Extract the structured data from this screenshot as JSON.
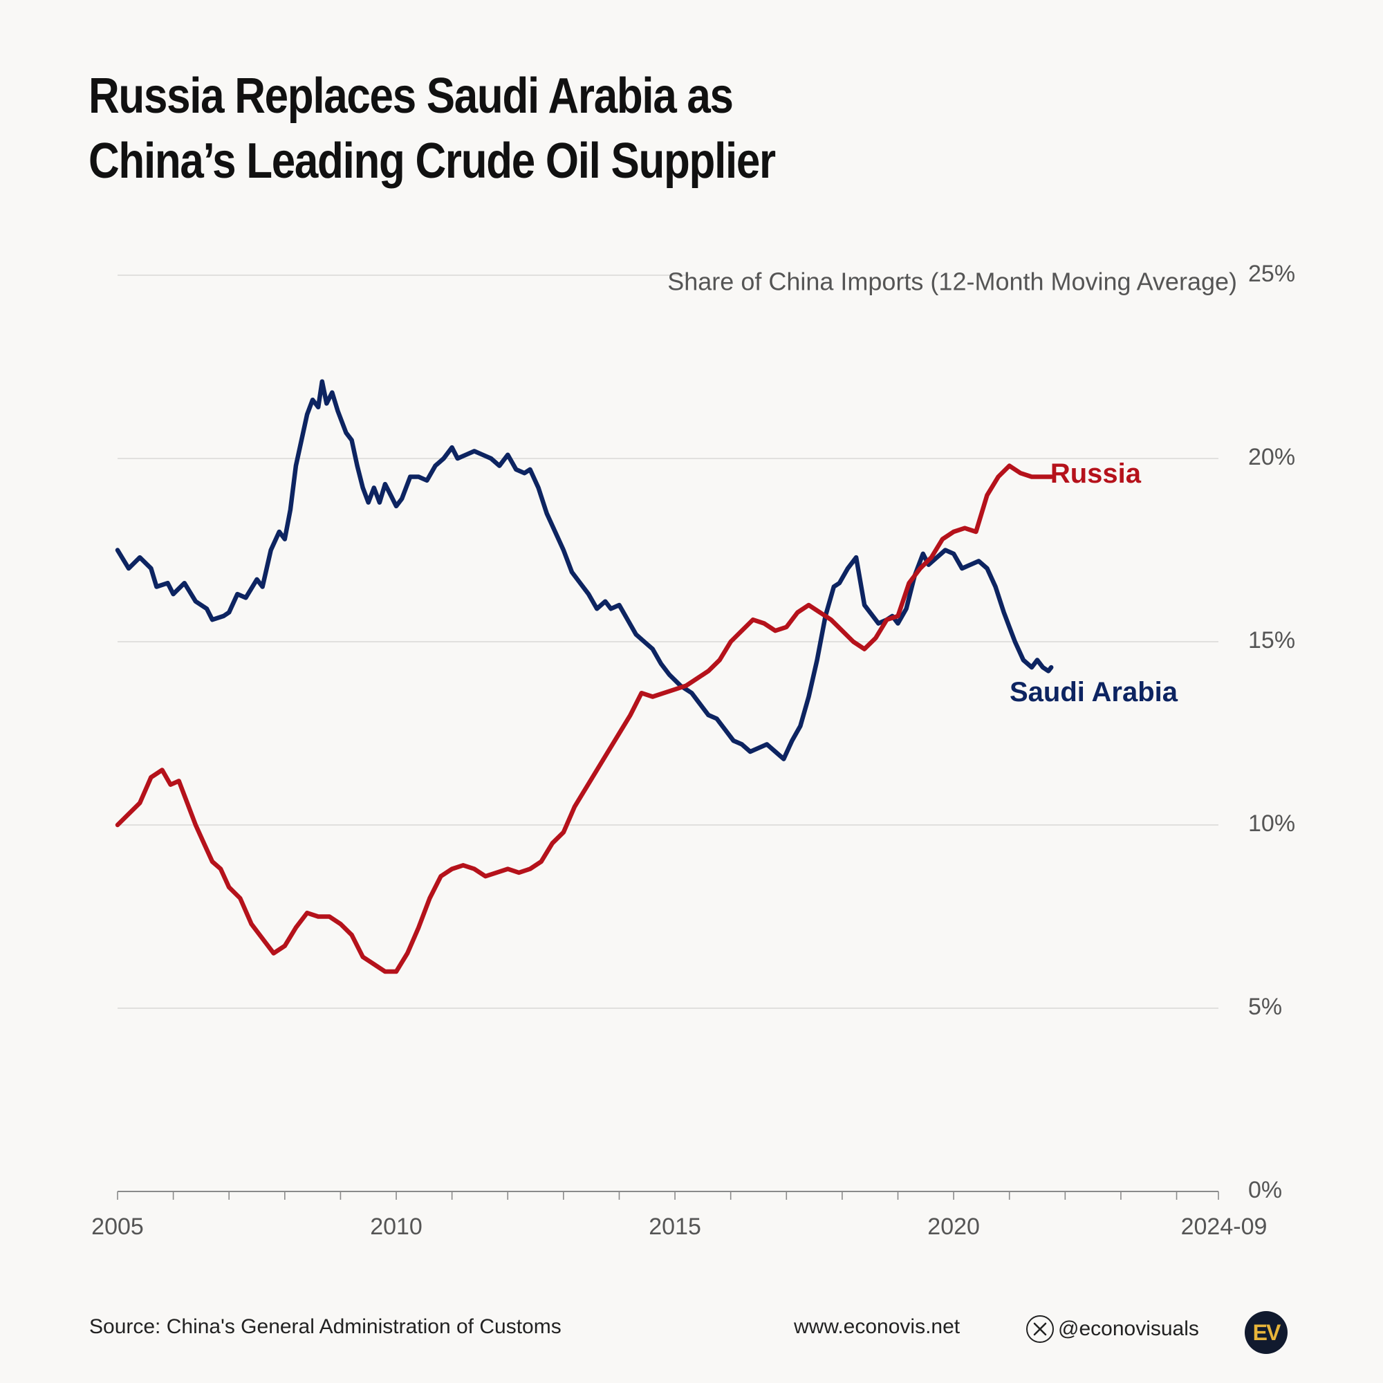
{
  "header": {
    "title_line1": "Russia Replaces Saudi Arabia as",
    "title_line2": "China’s Leading Crude Oil Supplier"
  },
  "chart_data": {
    "type": "line",
    "axis_title": "Share of China Imports (12-Month Moving Average)",
    "ylim": [
      0,
      25
    ],
    "yticks": [
      0,
      5,
      10,
      15,
      20,
      25
    ],
    "ytick_labels": [
      "0%",
      "5%",
      "10%",
      "15%",
      "20%",
      "25%"
    ],
    "xlim": [
      2005.0,
      2024.75
    ],
    "xticks": [
      2005,
      2010,
      2015,
      2020,
      2024.75
    ],
    "xtick_labels": [
      "2005",
      "2010",
      "2015",
      "2020",
      "2024-09"
    ],
    "grid": true,
    "series": [
      {
        "name": "Saudi Arabia",
        "color": "#0d2461",
        "points": [
          [
            2005.0,
            17.5
          ],
          [
            2005.2,
            17.0
          ],
          [
            2005.4,
            17.3
          ],
          [
            2005.6,
            17.0
          ],
          [
            2005.7,
            16.5
          ],
          [
            2005.9,
            16.6
          ],
          [
            2006.0,
            16.3
          ],
          [
            2006.2,
            16.6
          ],
          [
            2006.4,
            16.1
          ],
          [
            2006.6,
            15.9
          ],
          [
            2006.7,
            15.6
          ],
          [
            2006.9,
            15.7
          ],
          [
            2007.0,
            15.8
          ],
          [
            2007.15,
            16.3
          ],
          [
            2007.3,
            16.2
          ],
          [
            2007.5,
            16.7
          ],
          [
            2007.6,
            16.5
          ],
          [
            2007.75,
            17.5
          ],
          [
            2007.9,
            18.0
          ],
          [
            2008.0,
            17.8
          ],
          [
            2008.1,
            18.6
          ],
          [
            2008.2,
            19.8
          ],
          [
            2008.3,
            20.5
          ],
          [
            2008.4,
            21.2
          ],
          [
            2008.5,
            21.6
          ],
          [
            2008.6,
            21.4
          ],
          [
            2008.67,
            22.1
          ],
          [
            2008.75,
            21.5
          ],
          [
            2008.85,
            21.8
          ],
          [
            2008.95,
            21.3
          ],
          [
            2009.1,
            20.7
          ],
          [
            2009.2,
            20.5
          ],
          [
            2009.3,
            19.8
          ],
          [
            2009.4,
            19.2
          ],
          [
            2009.5,
            18.8
          ],
          [
            2009.6,
            19.2
          ],
          [
            2009.7,
            18.8
          ],
          [
            2009.8,
            19.3
          ],
          [
            2009.9,
            19.0
          ],
          [
            2010.0,
            18.7
          ],
          [
            2010.1,
            18.9
          ],
          [
            2010.25,
            19.5
          ],
          [
            2010.4,
            19.5
          ],
          [
            2010.55,
            19.4
          ],
          [
            2010.7,
            19.8
          ],
          [
            2010.85,
            20.0
          ],
          [
            2011.0,
            20.3
          ],
          [
            2011.1,
            20.0
          ],
          [
            2011.25,
            20.1
          ],
          [
            2011.4,
            20.2
          ],
          [
            2011.55,
            20.1
          ],
          [
            2011.7,
            20.0
          ],
          [
            2011.85,
            19.8
          ],
          [
            2012.0,
            20.1
          ],
          [
            2012.15,
            19.7
          ],
          [
            2012.3,
            19.6
          ],
          [
            2012.4,
            19.7
          ],
          [
            2012.55,
            19.2
          ],
          [
            2012.7,
            18.5
          ],
          [
            2012.85,
            18.0
          ],
          [
            2013.0,
            17.5
          ],
          [
            2013.15,
            16.9
          ],
          [
            2013.3,
            16.6
          ],
          [
            2013.45,
            16.3
          ],
          [
            2013.6,
            15.9
          ],
          [
            2013.75,
            16.1
          ],
          [
            2013.85,
            15.9
          ],
          [
            2014.0,
            16.0
          ],
          [
            2014.15,
            15.6
          ],
          [
            2014.3,
            15.2
          ],
          [
            2014.45,
            15.0
          ],
          [
            2014.6,
            14.8
          ],
          [
            2014.75,
            14.4
          ],
          [
            2014.9,
            14.1
          ],
          [
            2015.1,
            13.8
          ],
          [
            2015.3,
            13.6
          ],
          [
            2015.45,
            13.3
          ],
          [
            2015.6,
            13.0
          ],
          [
            2015.75,
            12.9
          ],
          [
            2015.9,
            12.6
          ],
          [
            2016.05,
            12.3
          ],
          [
            2016.2,
            12.2
          ],
          [
            2016.35,
            12.0
          ],
          [
            2016.5,
            12.1
          ],
          [
            2016.65,
            12.2
          ],
          [
            2016.8,
            12.0
          ],
          [
            2016.95,
            11.8
          ],
          [
            2017.1,
            12.3
          ],
          [
            2017.25,
            12.7
          ],
          [
            2017.4,
            13.5
          ],
          [
            2017.55,
            14.5
          ],
          [
            2017.7,
            15.7
          ],
          [
            2017.85,
            16.5
          ],
          [
            2017.95,
            16.6
          ],
          [
            2018.1,
            17.0
          ],
          [
            2018.25,
            17.3
          ],
          [
            2018.4,
            16.0
          ],
          [
            2018.5,
            15.8
          ],
          [
            2018.65,
            15.5
          ],
          [
            2018.8,
            15.6
          ],
          [
            2018.9,
            15.7
          ],
          [
            2019.0,
            15.5
          ],
          [
            2019.15,
            15.9
          ],
          [
            2019.3,
            16.8
          ],
          [
            2019.45,
            17.4
          ],
          [
            2019.55,
            17.1
          ],
          [
            2019.7,
            17.3
          ],
          [
            2019.85,
            17.5
          ],
          [
            2020.0,
            17.4
          ],
          [
            2020.15,
            17.0
          ],
          [
            2020.3,
            17.1
          ],
          [
            2020.45,
            17.2
          ],
          [
            2020.6,
            17.0
          ],
          [
            2020.75,
            16.5
          ],
          [
            2020.9,
            15.8
          ],
          [
            2021.0,
            15.4
          ],
          [
            2021.1,
            15.0
          ],
          [
            2021.25,
            14.5
          ],
          [
            2021.4,
            14.3
          ],
          [
            2021.5,
            14.5
          ],
          [
            2021.6,
            14.3
          ],
          [
            2021.7,
            14.2
          ],
          [
            2021.75,
            14.3
          ]
        ]
      },
      {
        "name": "Russia",
        "color": "#b5121b",
        "points": [
          [
            2005.0,
            10.0
          ],
          [
            2005.2,
            10.3
          ],
          [
            2005.4,
            10.6
          ],
          [
            2005.6,
            11.3
          ],
          [
            2005.8,
            11.5
          ],
          [
            2005.95,
            11.1
          ],
          [
            2006.1,
            11.2
          ],
          [
            2006.25,
            10.6
          ],
          [
            2006.4,
            10.0
          ],
          [
            2006.55,
            9.5
          ],
          [
            2006.7,
            9.0
          ],
          [
            2006.85,
            8.8
          ],
          [
            2007.0,
            8.3
          ],
          [
            2007.2,
            8.0
          ],
          [
            2007.4,
            7.3
          ],
          [
            2007.6,
            6.9
          ],
          [
            2007.8,
            6.5
          ],
          [
            2008.0,
            6.7
          ],
          [
            2008.2,
            7.2
          ],
          [
            2008.4,
            7.6
          ],
          [
            2008.6,
            7.5
          ],
          [
            2008.8,
            7.5
          ],
          [
            2009.0,
            7.3
          ],
          [
            2009.2,
            7.0
          ],
          [
            2009.4,
            6.4
          ],
          [
            2009.6,
            6.2
          ],
          [
            2009.8,
            6.0
          ],
          [
            2010.0,
            6.0
          ],
          [
            2010.2,
            6.5
          ],
          [
            2010.4,
            7.2
          ],
          [
            2010.6,
            8.0
          ],
          [
            2010.8,
            8.6
          ],
          [
            2011.0,
            8.8
          ],
          [
            2011.2,
            8.9
          ],
          [
            2011.4,
            8.8
          ],
          [
            2011.6,
            8.6
          ],
          [
            2011.8,
            8.7
          ],
          [
            2012.0,
            8.8
          ],
          [
            2012.2,
            8.7
          ],
          [
            2012.4,
            8.8
          ],
          [
            2012.6,
            9.0
          ],
          [
            2012.8,
            9.5
          ],
          [
            2013.0,
            9.8
          ],
          [
            2013.2,
            10.5
          ],
          [
            2013.4,
            11.0
          ],
          [
            2013.6,
            11.5
          ],
          [
            2013.8,
            12.0
          ],
          [
            2014.0,
            12.5
          ],
          [
            2014.2,
            13.0
          ],
          [
            2014.4,
            13.6
          ],
          [
            2014.6,
            13.5
          ],
          [
            2014.8,
            13.6
          ],
          [
            2015.0,
            13.7
          ],
          [
            2015.2,
            13.8
          ],
          [
            2015.4,
            14.0
          ],
          [
            2015.6,
            14.2
          ],
          [
            2015.8,
            14.5
          ],
          [
            2016.0,
            15.0
          ],
          [
            2016.2,
            15.3
          ],
          [
            2016.4,
            15.6
          ],
          [
            2016.6,
            15.5
          ],
          [
            2016.8,
            15.3
          ],
          [
            2017.0,
            15.4
          ],
          [
            2017.2,
            15.8
          ],
          [
            2017.4,
            16.0
          ],
          [
            2017.6,
            15.8
          ],
          [
            2017.8,
            15.6
          ],
          [
            2018.0,
            15.3
          ],
          [
            2018.2,
            15.0
          ],
          [
            2018.4,
            14.8
          ],
          [
            2018.6,
            15.1
          ],
          [
            2018.8,
            15.6
          ],
          [
            2019.0,
            15.7
          ],
          [
            2019.2,
            16.6
          ],
          [
            2019.4,
            17.0
          ],
          [
            2019.6,
            17.3
          ],
          [
            2019.8,
            17.8
          ],
          [
            2020.0,
            18.0
          ],
          [
            2020.2,
            18.1
          ],
          [
            2020.4,
            18.0
          ],
          [
            2020.6,
            19.0
          ],
          [
            2020.8,
            19.5
          ],
          [
            2021.0,
            19.8
          ],
          [
            2021.2,
            19.6
          ],
          [
            2021.4,
            19.5
          ],
          [
            2021.6,
            19.5
          ],
          [
            2021.75,
            19.5
          ]
        ]
      }
    ],
    "series_labels": [
      {
        "text": "Russia",
        "color": "#b5121b"
      },
      {
        "text": "Saudi Arabia",
        "color": "#0d2461"
      }
    ]
  },
  "footer": {
    "source": "Source: China's General Administration of Customs",
    "website": "www.econovis.net",
    "handle": "@econovisuals",
    "logo_text": "EV"
  }
}
